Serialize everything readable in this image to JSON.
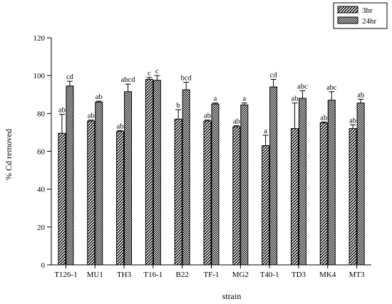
{
  "chart_data": {
    "type": "bar",
    "xlabel": "strain",
    "ylabel": "% Cd removed",
    "ylim": [
      0,
      120
    ],
    "yticks": [
      0,
      20,
      40,
      60,
      80,
      100,
      120
    ],
    "grid": false,
    "legend_placement": "top-right",
    "categories": [
      "T126-1",
      "MU1",
      "TH3",
      "T16-1",
      "B22",
      "TF-1",
      "MG2",
      "T40-1",
      "TD3",
      "MK4",
      "MT3"
    ],
    "series": [
      {
        "name": "3hr",
        "pattern": "diagonal-stripes",
        "values": [
          69.5,
          76,
          70.5,
          98,
          77,
          76,
          73,
          63,
          72,
          75,
          72
        ],
        "errors": [
          10,
          0.5,
          0.5,
          1,
          5,
          0.5,
          0.5,
          5.5,
          13.5,
          0.5,
          2
        ],
        "labels": [
          "ab",
          "ab",
          "ab",
          "c",
          "b",
          "ab",
          "ab",
          "a",
          "ab",
          "ab",
          "ab"
        ]
      },
      {
        "name": "24hr",
        "pattern": "dotted",
        "values": [
          94.5,
          86,
          91.5,
          97.5,
          92.5,
          85,
          84.5,
          94,
          88,
          87,
          85.5
        ],
        "errors": [
          2.5,
          0.5,
          4,
          2.5,
          4,
          0.5,
          1,
          4,
          4,
          4.5,
          2
        ],
        "labels": [
          "cd",
          "ab",
          "abcd",
          "c",
          "bcd",
          "a",
          "a",
          "cd",
          "abc",
          "abc",
          "ab"
        ]
      }
    ]
  }
}
